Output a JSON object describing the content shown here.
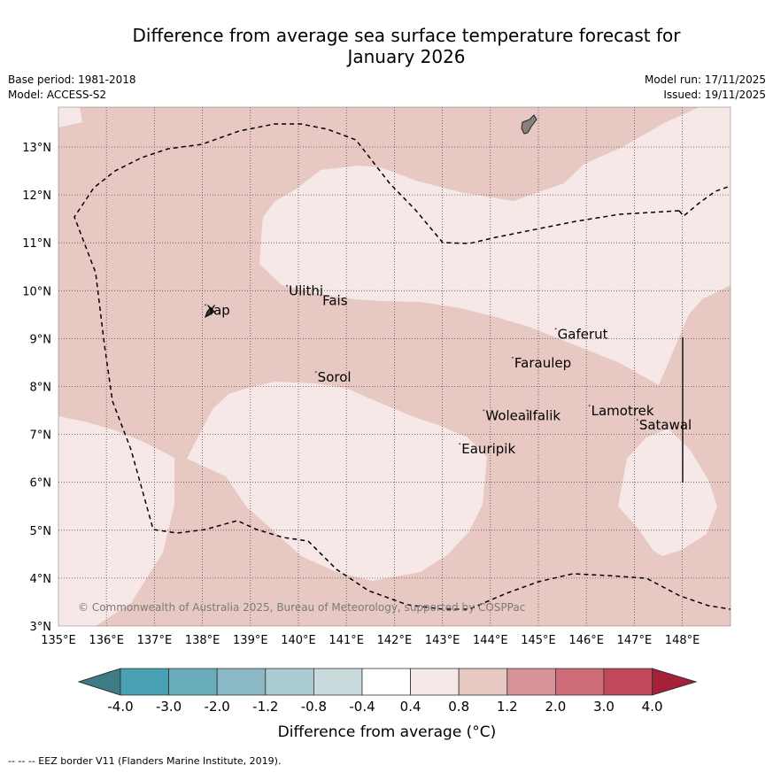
{
  "header": {
    "title_line1": "Difference from average sea surface temperature forecast for",
    "title_line2": "January 2026",
    "base_period": "Base period: 1981-2018",
    "model": "Model: ACCESS-S2",
    "model_run": "Model run: 17/11/2025",
    "issued": "Issued: 19/11/2025"
  },
  "map": {
    "lon_range": [
      135,
      149
    ],
    "lat_range": [
      3,
      13.8
    ],
    "lon_ticks": [
      "135°E",
      "136°E",
      "137°E",
      "138°E",
      "139°E",
      "140°E",
      "141°E",
      "142°E",
      "143°E",
      "144°E",
      "145°E",
      "146°E",
      "147°E",
      "148°E"
    ],
    "lat_ticks": [
      "3°N",
      "4°N",
      "5°N",
      "6°N",
      "7°N",
      "8°N",
      "9°N",
      "10°N",
      "11°N",
      "12°N",
      "13°N"
    ],
    "places": [
      {
        "name": "Ulithi",
        "lon": 139.8,
        "lat": 9.9
      },
      {
        "name": "Fais",
        "lon": 140.5,
        "lat": 9.7
      },
      {
        "name": "Yap",
        "lon": 138.1,
        "lat": 9.5
      },
      {
        "name": "Gaferut",
        "lon": 145.4,
        "lat": 9.0
      },
      {
        "name": "Faraulep",
        "lon": 144.5,
        "lat": 8.4
      },
      {
        "name": "Sorol",
        "lon": 140.4,
        "lat": 8.1
      },
      {
        "name": "Lamotrek",
        "lon": 146.1,
        "lat": 7.4
      },
      {
        "name": "Woleai",
        "lon": 143.9,
        "lat": 7.3
      },
      {
        "name": "Ifalik",
        "lon": 144.8,
        "lat": 7.3
      },
      {
        "name": "Satawal",
        "lon": 147.1,
        "lat": 7.1
      },
      {
        "name": "Eauripik",
        "lon": 143.4,
        "lat": 6.6
      }
    ],
    "credit": "© Commonwealth of Australia 2025, Bureau of Meteorology, supported by COSPPac",
    "colors": {
      "anomaly_0.4_0.8": "#f5e8e6",
      "anomaly_0.8_1.2": "#e7c8c3",
      "land": "#8a8080",
      "grid": "#5a4d4d"
    }
  },
  "colorbar": {
    "labels": [
      "-4.0",
      "-3.0",
      "-2.0",
      "-1.2",
      "-0.8",
      "-0.4",
      "0.4",
      "0.8",
      "1.2",
      "2.0",
      "3.0",
      "4.0"
    ],
    "colors": [
      "#3e7d86",
      "#48a1b2",
      "#69adbc",
      "#8ab8c4",
      "#aacbd1",
      "#c9dadd",
      "#ffffff",
      "#f5e8e6",
      "#e7c8c3",
      "#d6939a",
      "#cd6b76",
      "#c04858",
      "#a7203a"
    ],
    "title": "Difference from average (°C)"
  },
  "footnote": "--  --  -- EEZ border V11 (Flanders Marine Institute, 2019)."
}
